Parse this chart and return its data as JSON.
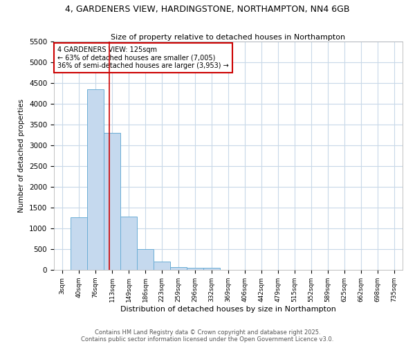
{
  "title_line1": "4, GARDENERS VIEW, HARDINGSTONE, NORTHAMPTON, NN4 6GB",
  "title_line2": "Size of property relative to detached houses in Northampton",
  "xlabel": "Distribution of detached houses by size in Northampton",
  "ylabel": "Number of detached properties",
  "bin_labels": [
    "3sqm",
    "40sqm",
    "76sqm",
    "113sqm",
    "149sqm",
    "186sqm",
    "223sqm",
    "259sqm",
    "296sqm",
    "332sqm",
    "369sqm",
    "406sqm",
    "442sqm",
    "479sqm",
    "515sqm",
    "552sqm",
    "589sqm",
    "625sqm",
    "662sqm",
    "698sqm",
    "735sqm"
  ],
  "bin_values": [
    0,
    1270,
    4350,
    3300,
    1280,
    500,
    200,
    75,
    50,
    50,
    0,
    0,
    0,
    0,
    0,
    0,
    0,
    0,
    0,
    0,
    0
  ],
  "bar_color": "#c5d9ee",
  "bar_edgecolor": "#6baed6",
  "property_size": 125,
  "annotation_line1": "4 GARDENERS VIEW: 125sqm",
  "annotation_line2": "← 63% of detached houses are smaller (7,005)",
  "annotation_line3": "36% of semi-detached houses are larger (3,953) →",
  "vline_color": "#cc0000",
  "annotation_box_edgecolor": "#cc0000",
  "ylim": [
    0,
    5500
  ],
  "yticks": [
    0,
    500,
    1000,
    1500,
    2000,
    2500,
    3000,
    3500,
    4000,
    4500,
    5000,
    5500
  ],
  "footer_line1": "Contains HM Land Registry data © Crown copyright and database right 2025.",
  "footer_line2": "Contains public sector information licensed under the Open Government Licence v3.0.",
  "background_color": "#ffffff",
  "grid_color": "#c8d8e8"
}
